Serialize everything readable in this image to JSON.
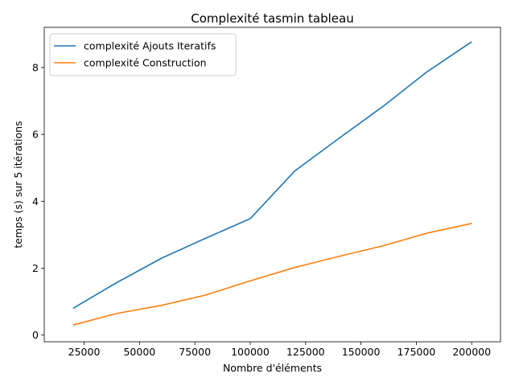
{
  "chart_data": {
    "type": "line",
    "title": "Complexité tasmin tableau",
    "xlabel": "Nombre d'éléments",
    "ylabel": "temps (s) sur 5 itérations",
    "x": [
      20000,
      40000,
      60000,
      80000,
      100000,
      120000,
      140000,
      160000,
      180000,
      200000
    ],
    "xlim": [
      7000,
      213000
    ],
    "ylim": [
      -0.2,
      9.2
    ],
    "xticks": [
      25000,
      50000,
      75000,
      100000,
      125000,
      150000,
      175000,
      200000
    ],
    "yticks": [
      0,
      2,
      4,
      6,
      8
    ],
    "grid": false,
    "legend_position": "top-left",
    "series": [
      {
        "name": "complexité Ajouts Iteratifs",
        "color": "#1f77b4",
        "values": [
          0.8,
          1.58,
          2.3,
          2.9,
          3.48,
          4.9,
          5.88,
          6.84,
          7.88,
          8.77
        ]
      },
      {
        "name": "complexité Construction",
        "color": "#ff7f0e",
        "values": [
          0.3,
          0.65,
          0.89,
          1.2,
          1.62,
          2.02,
          2.35,
          2.67,
          3.05,
          3.34
        ]
      }
    ]
  }
}
